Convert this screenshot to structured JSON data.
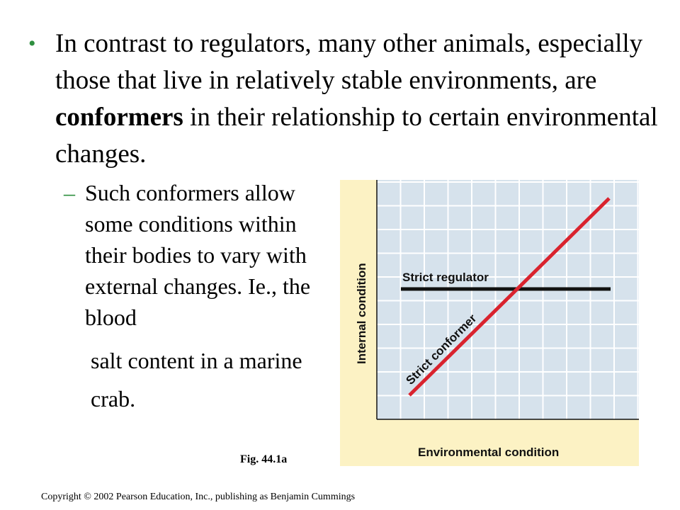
{
  "slide": {
    "bullet_mark": "•",
    "main_text_pre": "In contrast to regulators, many other animals, especially those that live in relatively stable environments, are ",
    "main_text_bold": "conformers",
    "main_text_post": " in their relationship to certain environmental changes.",
    "sub_mark": "–",
    "sub_text": "Such conformers allow some conditions within their bodies to vary with external changes. Ie., the blood",
    "sub_text_continued_1": "salt content in a marine",
    "sub_text_continued_2": "crab."
  },
  "figure": {
    "caption": "Fig. 44.1a",
    "xlabel": "Environmental condition",
    "ylabel": "Internal condition",
    "regulator_label": "Strict regulator",
    "conformer_label": "Strict conformer",
    "colors": {
      "panel_background": "#fcf2c4",
      "plot_background": "#d6e2ec",
      "grid": "#ffffff",
      "regulator_line": "#111111",
      "conformer_line": "#d9232e"
    }
  },
  "footer": {
    "copyright": "Copyright © 2002 Pearson Education, Inc., publishing as Benjamin Cummings"
  }
}
